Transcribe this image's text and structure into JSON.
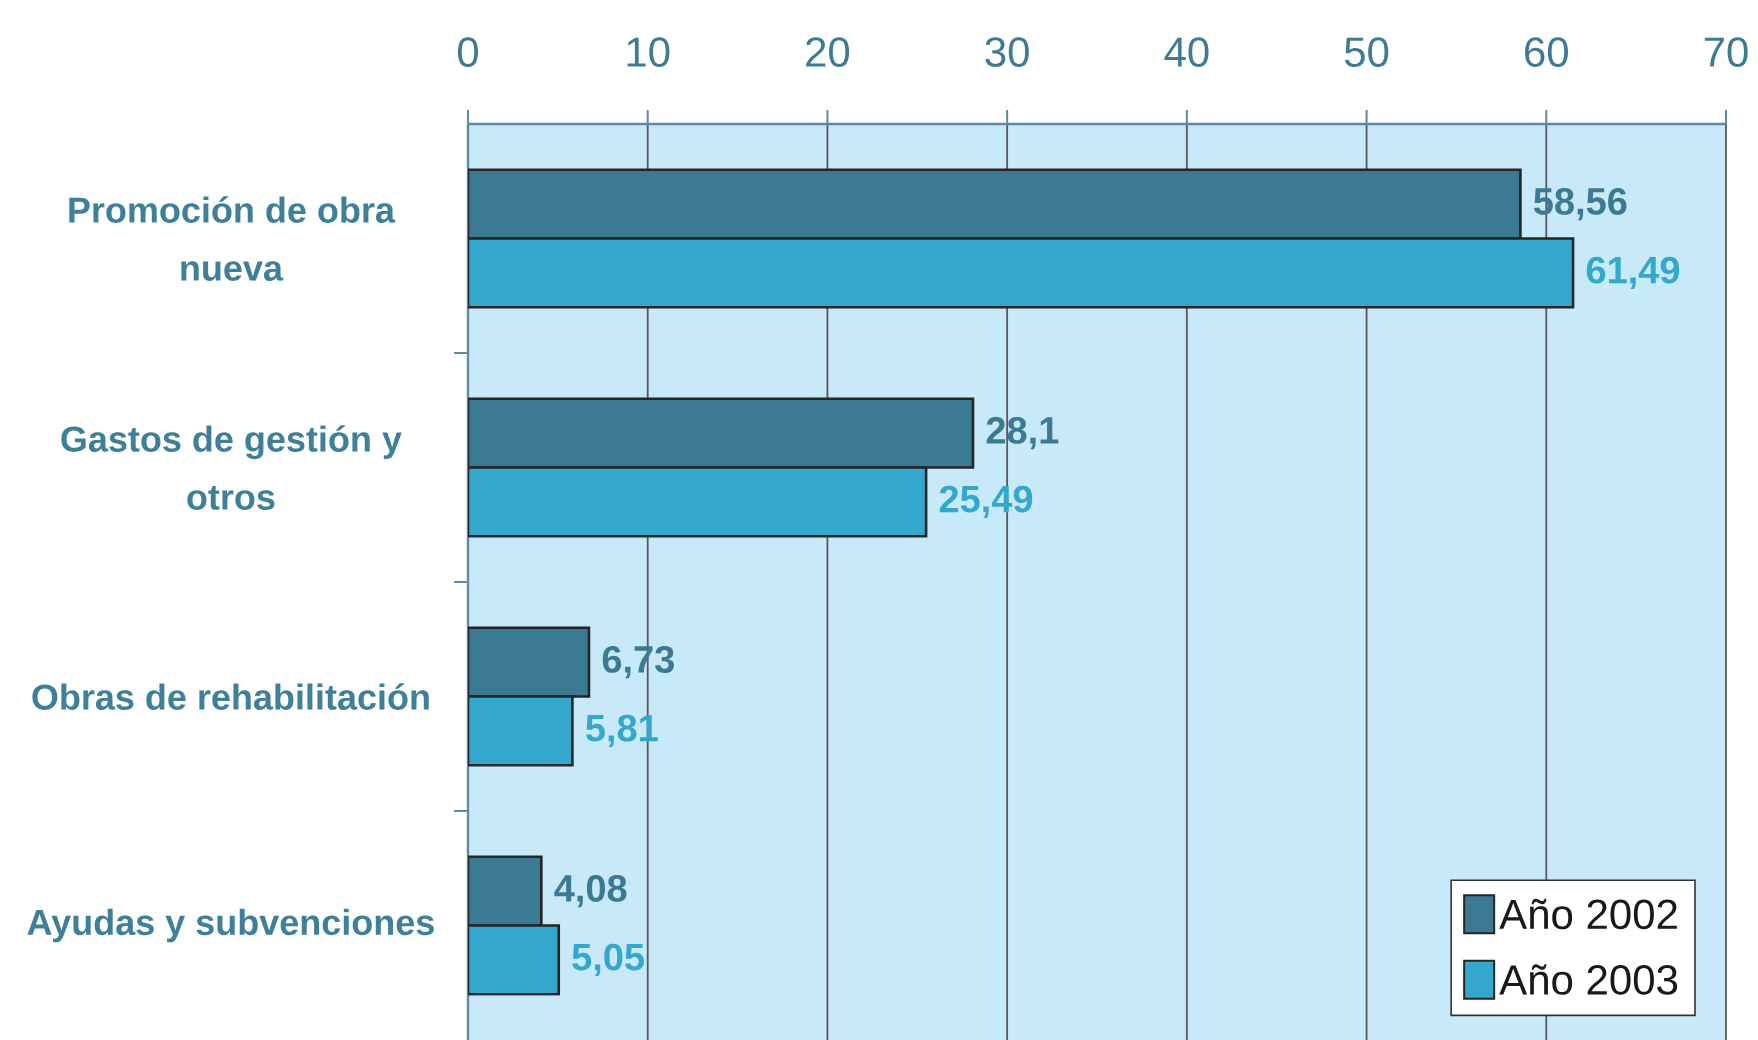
{
  "chart_data": {
    "type": "bar",
    "orientation": "horizontal",
    "categories": [
      "Promoción de obra nueva",
      "Gastos de gestión y otros",
      "Obras de rehabilitación",
      "Ayudas y subvenciones"
    ],
    "series": [
      {
        "name": "Año 2002",
        "color": "#3c7a93",
        "values": [
          58.56,
          28.1,
          6.73,
          4.08
        ],
        "value_labels": [
          "58,56",
          "28,1",
          "6,73",
          "4,08"
        ]
      },
      {
        "name": "Año 2003",
        "color": "#33a7cc",
        "values": [
          61.49,
          25.49,
          5.81,
          5.05
        ],
        "value_labels": [
          "61,49",
          "25,49",
          "5,81",
          "5,05"
        ]
      }
    ],
    "xlim": [
      0,
      70
    ],
    "xticks": [
      0,
      10,
      20,
      30,
      40,
      50,
      60,
      70
    ],
    "grid": "x",
    "legend": "bottom right"
  }
}
